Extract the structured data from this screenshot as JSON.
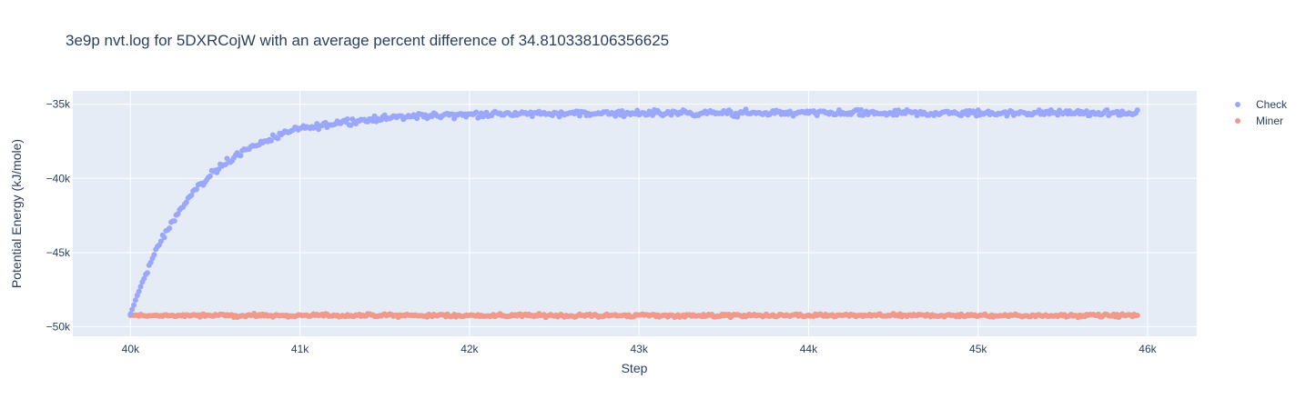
{
  "chart_data": {
    "type": "scatter",
    "title": "3e9p nvt.log for 5DXRCojW with an average percent difference of 34.810338106356625",
    "xlabel": "Step",
    "ylabel": "Potential Energy (kJ/mole)",
    "xlim": [
      39660,
      46290
    ],
    "ylim": [
      -50650,
      -34100
    ],
    "x_ticks": [
      40000,
      41000,
      42000,
      43000,
      44000,
      45000,
      46000
    ],
    "x_tick_labels": [
      "40k",
      "41k",
      "42k",
      "43k",
      "44k",
      "45k",
      "46k"
    ],
    "y_ticks": [
      -35000,
      -40000,
      -45000,
      -50000
    ],
    "y_tick_labels": [
      "−35k",
      "−40k",
      "−45k",
      "−50k"
    ],
    "grid": true,
    "legend_position": "top-right",
    "x_start": 40000,
    "x_end": 45940,
    "x_step": 10,
    "series": [
      {
        "name": "Check",
        "color": "#9aa7fb",
        "description": "rises from about -49200 at step 40000 toward a plateau near -35600 (approx. exponential, time constant ~400 steps), with noise of about +/-300",
        "start_value": -49200,
        "plateau_value": -35600,
        "time_constant_steps": 400,
        "noise_amplitude": 300
      },
      {
        "name": "Miner",
        "color": "#ee9a8c",
        "description": "roughly flat near -49250 across all steps, with noise of about +/-150",
        "mean_value": -49250,
        "noise_amplitude": 150
      }
    ]
  }
}
